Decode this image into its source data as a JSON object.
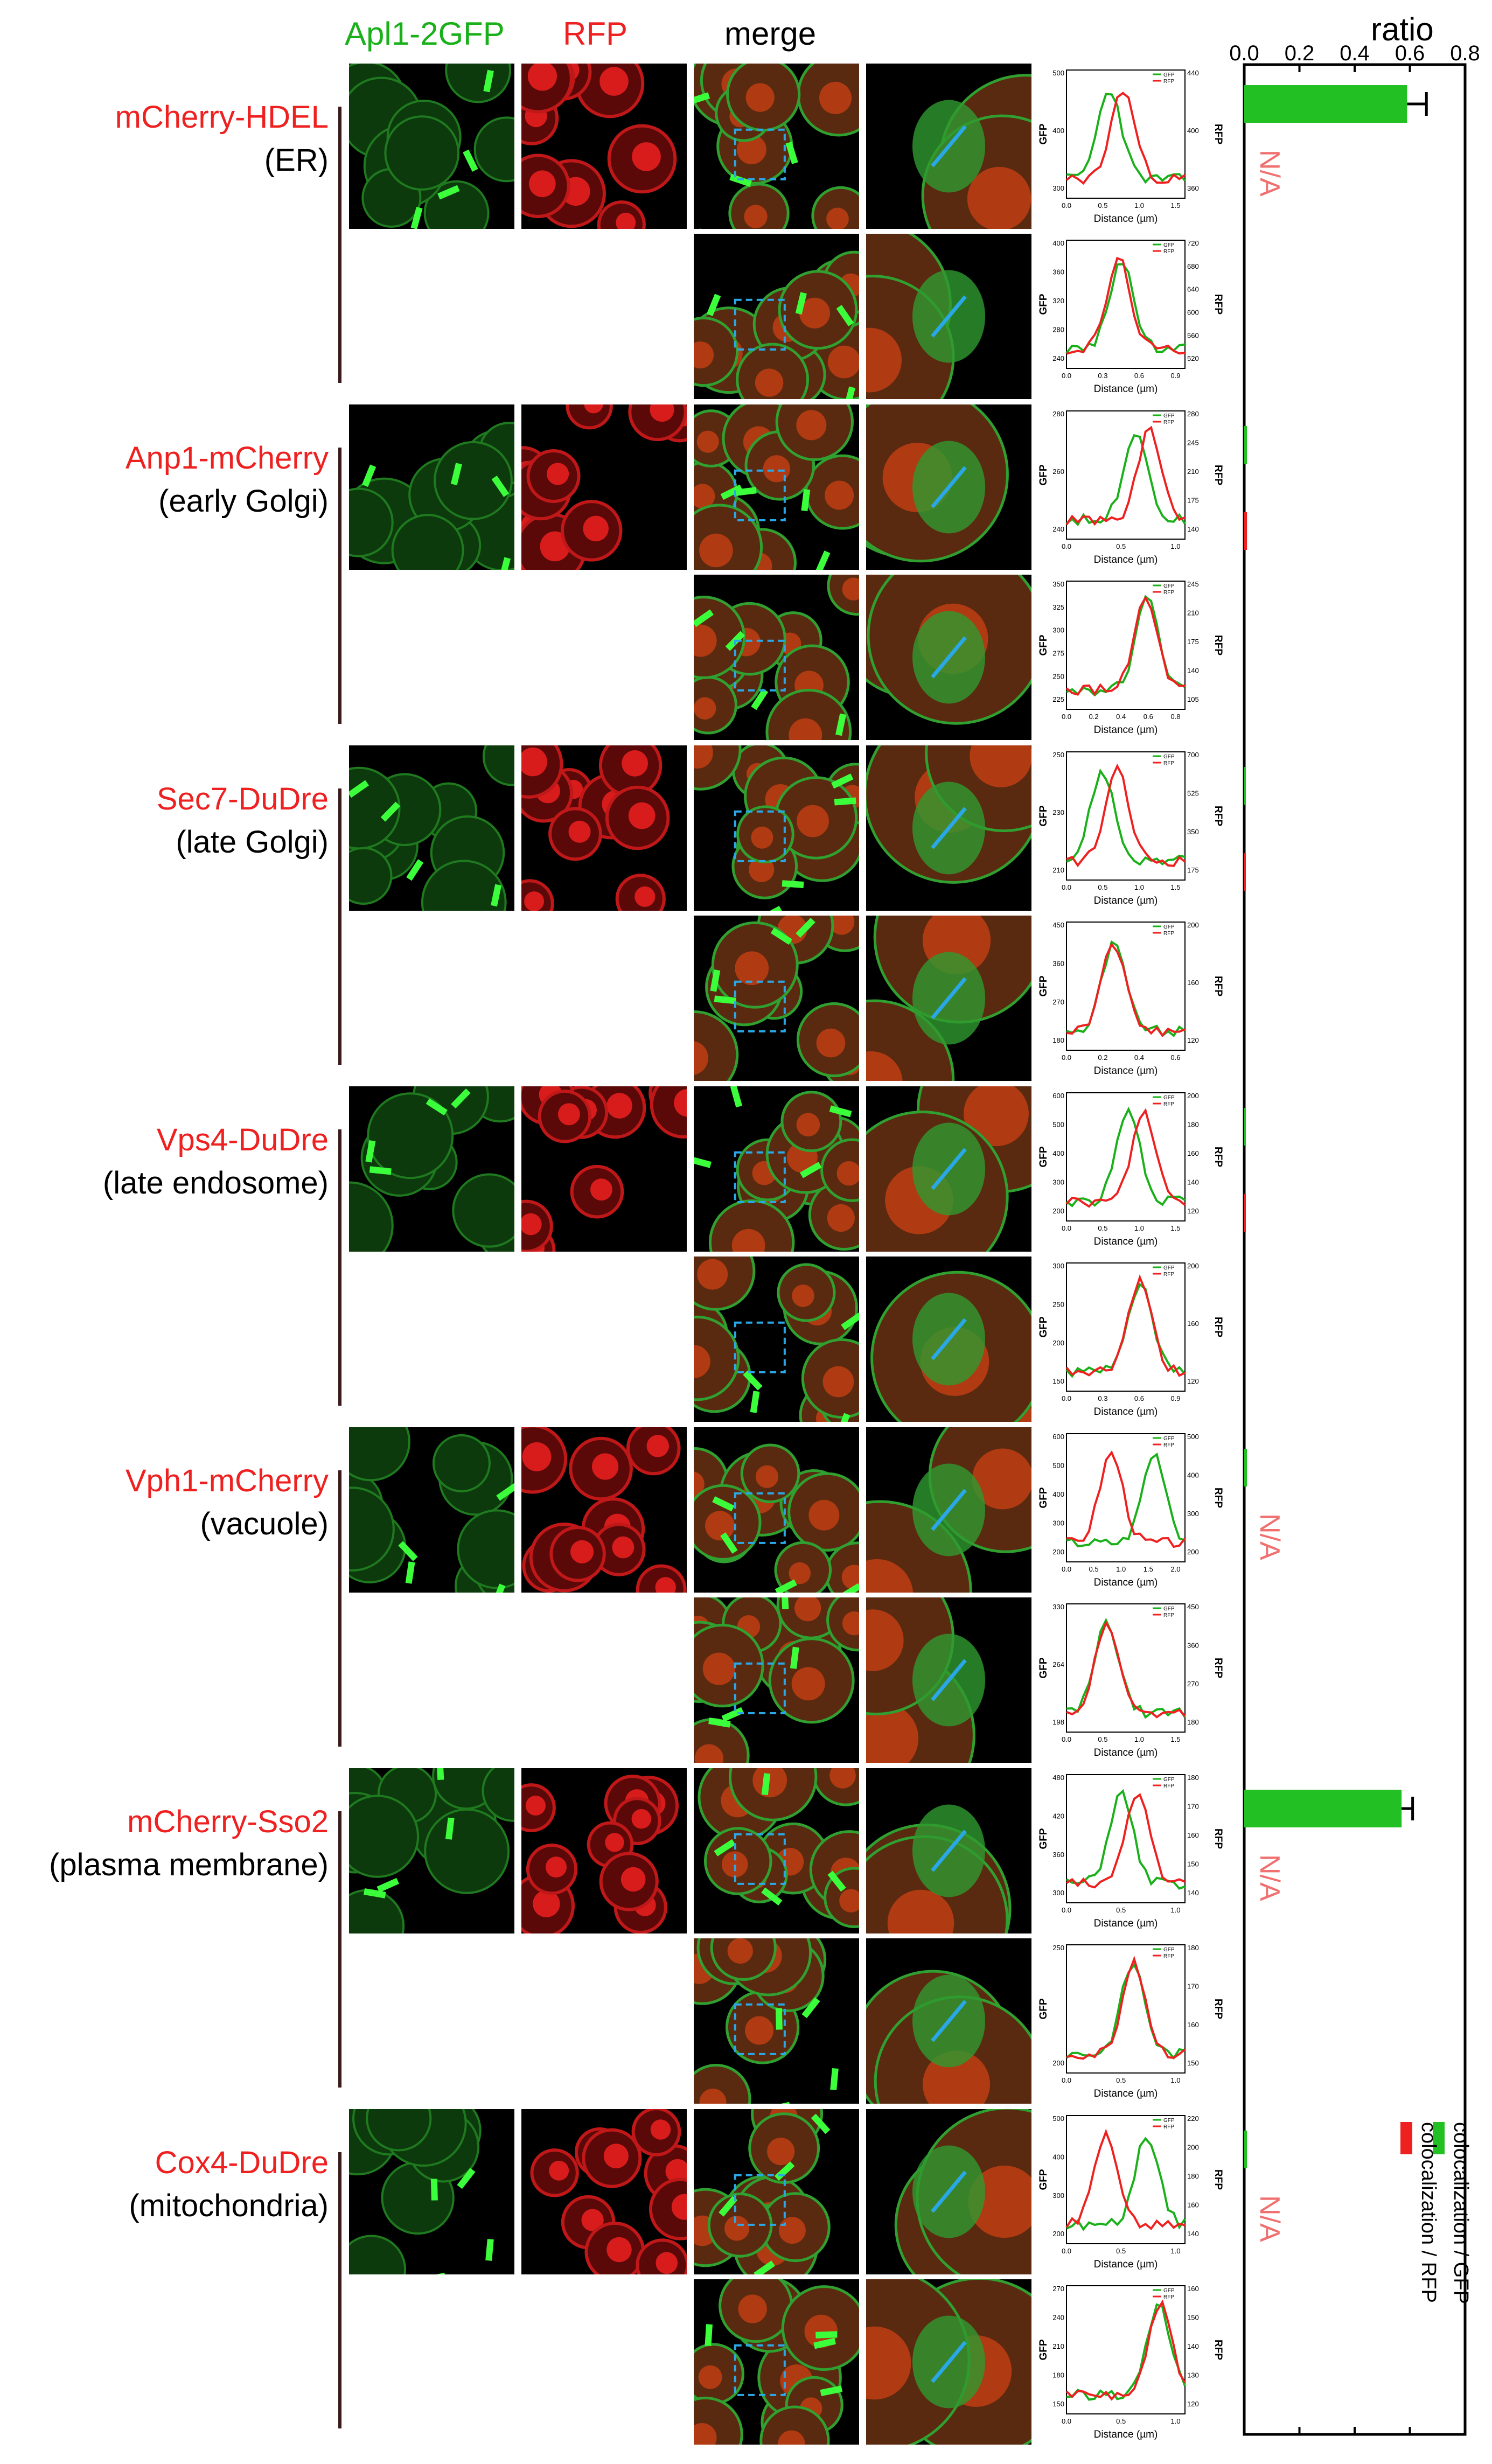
{
  "headers": {
    "gfp": "Apl1-2GFP",
    "rfp": "RFP",
    "merge": "merge",
    "ratio": "ratio"
  },
  "rows": [
    {
      "marker": "mCherry-HDEL",
      "location": "(ER)",
      "gfp_ratio": 0.59,
      "gfp_err": 0.07,
      "rfp_ratio": null,
      "na": true,
      "profiles": [
        {
          "rfp_ticks": [
            "440",
            "400",
            "360"
          ],
          "gfp_ticks": [
            "500",
            "400",
            "300"
          ],
          "x_ticks": [
            "0.0",
            "0.5",
            "1.0",
            "1.5"
          ]
        },
        {
          "rfp_ticks": [
            "720",
            "680",
            "640",
            "600",
            "560",
            "520"
          ],
          "gfp_ticks": [
            "400",
            "360",
            "320",
            "280",
            "240"
          ],
          "x_ticks": [
            "0.0",
            "0.3",
            "0.6",
            "0.9"
          ]
        }
      ]
    },
    {
      "marker": "Anp1-mCherry",
      "location": "(early Golgi)",
      "gfp_ratio": 0.01,
      "gfp_err": 0.0,
      "rfp_ratio": 0.01,
      "na": false,
      "profiles": [
        {
          "rfp_ticks": [
            "280",
            "245",
            "210",
            "175",
            "140"
          ],
          "gfp_ticks": [
            "280",
            "260",
            "240"
          ],
          "x_ticks": [
            "0.0",
            "0.5",
            "1.0"
          ]
        },
        {
          "rfp_ticks": [
            "245",
            "210",
            "175",
            "140",
            "105"
          ],
          "gfp_ticks": [
            "350",
            "325",
            "300",
            "275",
            "250",
            "225"
          ],
          "x_ticks": [
            "0.0",
            "0.2",
            "0.4",
            "0.6",
            "0.8"
          ]
        }
      ]
    },
    {
      "marker": "Sec7-DuDre",
      "location": "(late Golgi)",
      "gfp_ratio": 0.0,
      "gfp_err": 0.0,
      "rfp_ratio": 0.0,
      "na": false,
      "profiles": [
        {
          "rfp_ticks": [
            "700",
            "525",
            "350",
            "175"
          ],
          "gfp_ticks": [
            "250",
            "230",
            "210"
          ],
          "x_ticks": [
            "0.0",
            "0.5",
            "1.0",
            "1.5"
          ]
        },
        {
          "rfp_ticks": [
            "200",
            "160",
            "120"
          ],
          "gfp_ticks": [
            "450",
            "360",
            "270",
            "180"
          ],
          "x_ticks": [
            "0.0",
            "0.2",
            "0.4",
            "0.6"
          ]
        }
      ]
    },
    {
      "marker": "Vps4-DuDre",
      "location": "(late endosome)",
      "gfp_ratio": 0.005,
      "gfp_err": 0.0,
      "rfp_ratio": 0.005,
      "na": false,
      "profiles": [
        {
          "rfp_ticks": [
            "200",
            "180",
            "160",
            "140",
            "120"
          ],
          "gfp_ticks": [
            "600",
            "500",
            "400",
            "300",
            "200"
          ],
          "x_ticks": [
            "0.0",
            "0.5",
            "1.0",
            "1.5"
          ]
        },
        {
          "rfp_ticks": [
            "200",
            "160",
            "120"
          ],
          "gfp_ticks": [
            "300",
            "250",
            "200",
            "150"
          ],
          "x_ticks": [
            "0.0",
            "0.3",
            "0.6",
            "0.9"
          ]
        }
      ]
    },
    {
      "marker": "Vph1-mCherry",
      "location": "(vacuole)",
      "gfp_ratio": 0.01,
      "gfp_err": 0.0,
      "rfp_ratio": null,
      "na": true,
      "profiles": [
        {
          "rfp_ticks": [
            "500",
            "400",
            "300",
            "200"
          ],
          "gfp_ticks": [
            "600",
            "500",
            "400",
            "300",
            "200"
          ],
          "x_ticks": [
            "0.0",
            "0.5",
            "1.0",
            "1.5",
            "2.0"
          ]
        },
        {
          "rfp_ticks": [
            "450",
            "360",
            "270",
            "180"
          ],
          "gfp_ticks": [
            "330",
            "264",
            "198"
          ],
          "x_ticks": [
            "0.0",
            "0.5",
            "1.0",
            "1.5"
          ]
        }
      ]
    },
    {
      "marker": "mCherry-Sso2",
      "location": "(plasma membrane)",
      "gfp_ratio": 0.57,
      "gfp_err": 0.04,
      "rfp_ratio": null,
      "na": true,
      "profiles": [
        {
          "rfp_ticks": [
            "180",
            "170",
            "160",
            "150",
            "140"
          ],
          "gfp_ticks": [
            "480",
            "420",
            "360",
            "300"
          ],
          "x_ticks": [
            "0.0",
            "0.5",
            "1.0"
          ]
        },
        {
          "rfp_ticks": [
            "180",
            "170",
            "160",
            "150"
          ],
          "gfp_ticks": [
            "250",
            "200"
          ],
          "x_ticks": [
            "0.0",
            "0.5",
            "1.0"
          ]
        }
      ]
    },
    {
      "marker": "Cox4-DuDre",
      "location": "(mitochondria)",
      "gfp_ratio": 0.01,
      "gfp_err": 0.0,
      "rfp_ratio": null,
      "na": true,
      "profiles": [
        {
          "rfp_ticks": [
            "220",
            "200",
            "180",
            "160",
            "140"
          ],
          "gfp_ticks": [
            "500",
            "400",
            "300",
            "200"
          ],
          "x_ticks": [
            "0.0",
            "0.5",
            "1.0"
          ]
        },
        {
          "rfp_ticks": [
            "160",
            "150",
            "140",
            "130",
            "120"
          ],
          "gfp_ticks": [
            "270",
            "240",
            "210",
            "180",
            "150"
          ],
          "x_ticks": [
            "0.0",
            "0.5",
            "1.0"
          ]
        }
      ]
    }
  ],
  "profile_labels": {
    "x_axis": "Distance (µm)",
    "y_left": "GFP",
    "y_right": "RFP",
    "legend_gfp": "GFP",
    "legend_rfp": "RFP"
  },
  "na_text": "N/A",
  "chart_data": {
    "type": "bar",
    "orientation": "horizontal",
    "title": "ratio",
    "x_ticks": [
      "0.0",
      "0.2",
      "0.4",
      "0.6",
      "0.8"
    ],
    "xlim": [
      0,
      0.8
    ],
    "categories": [
      "mCherry-HDEL",
      "Anp1-mCherry",
      "Sec7-DuDre",
      "Vps4-DuDre",
      "Vph1-mCherry",
      "mCherry-Sso2",
      "Cox4-DuDre"
    ],
    "series": [
      {
        "name": "colocalization / GFP",
        "color": "#22c022",
        "values": [
          0.59,
          0.01,
          0.0,
          0.005,
          0.01,
          0.57,
          0.01
        ],
        "errors": [
          0.07,
          0,
          0,
          0,
          0,
          0.04,
          0
        ]
      },
      {
        "name": "colocalization / RFP",
        "color": "#ee2020",
        "values": [
          null,
          0.01,
          0.0,
          0.005,
          null,
          null,
          null
        ]
      }
    ],
    "legend_position": "bottom-right"
  },
  "colors": {
    "gfp": "#19b019",
    "rfp": "#ee2020",
    "merge_line": "#2aa7e6"
  }
}
